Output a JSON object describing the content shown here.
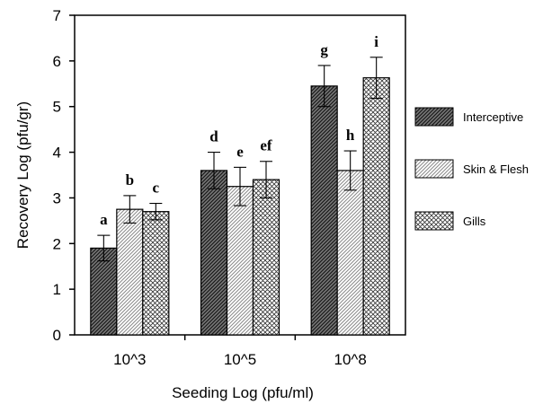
{
  "chart_data": {
    "type": "bar",
    "xlabel": "Seeding Log (pfu/ml)",
    "ylabel": "Recovery Log (pfu/gr)",
    "ylim": [
      0,
      7
    ],
    "yticks": [
      0,
      1,
      2,
      3,
      4,
      5,
      6,
      7
    ],
    "categories": [
      "10^3",
      "10^5",
      "10^8"
    ],
    "legend_position": "right",
    "series": [
      {
        "name": "Interceptive",
        "pattern": "dense-diagonal-dark",
        "values": [
          1.9,
          3.6,
          5.45
        ],
        "errors": [
          0.28,
          0.4,
          0.45
        ],
        "labels": [
          "a",
          "d",
          "g"
        ]
      },
      {
        "name": "Skin & Flesh",
        "pattern": "light-diagonal",
        "values": [
          2.75,
          3.25,
          3.6
        ],
        "errors": [
          0.3,
          0.42,
          0.43
        ],
        "labels": [
          "b",
          "e",
          "h"
        ]
      },
      {
        "name": "Gills",
        "pattern": "crosshatch",
        "values": [
          2.7,
          3.4,
          5.63
        ],
        "errors": [
          0.18,
          0.4,
          0.45
        ],
        "labels": [
          "c",
          "ef",
          "i"
        ]
      }
    ]
  }
}
